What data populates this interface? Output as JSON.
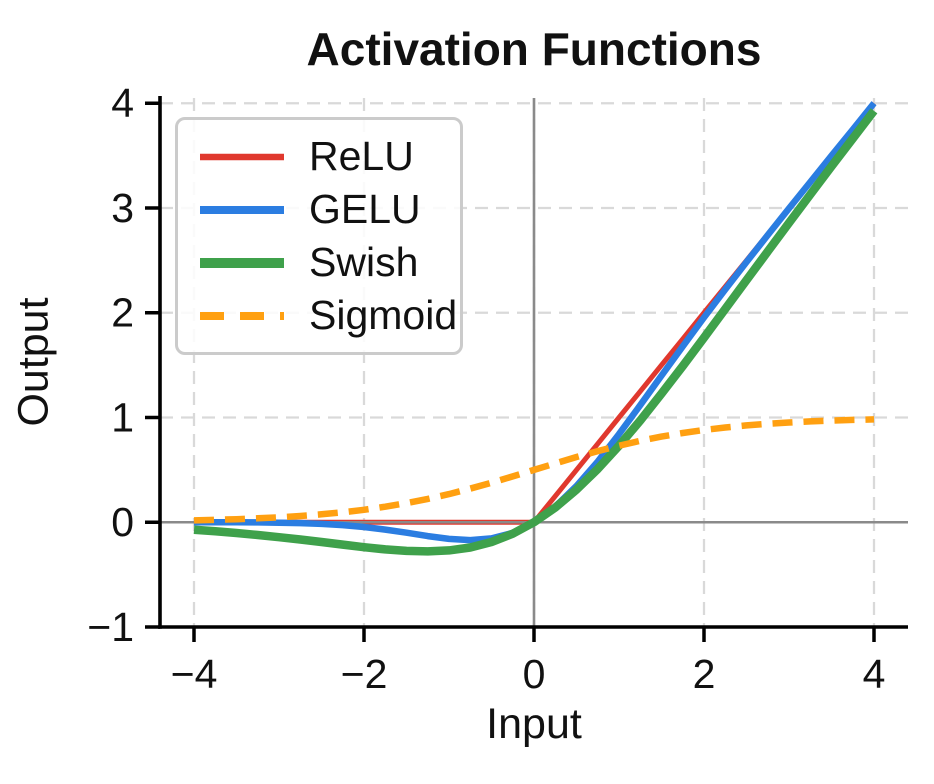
{
  "chart_data": {
    "type": "line",
    "title": "Activation Functions",
    "xlabel": "Input",
    "ylabel": "Output",
    "xlim": [
      -4.4,
      4.4
    ],
    "ylim": [
      -1,
      4.05
    ],
    "x_tick_values": [
      -4,
      -2,
      0,
      2,
      4
    ],
    "x_tick_labels": [
      "−4",
      "−2",
      "0",
      "2",
      "4"
    ],
    "y_tick_values": [
      -1,
      0,
      1,
      2,
      3,
      4
    ],
    "y_tick_labels": [
      "−1",
      "0",
      "1",
      "2",
      "3",
      "4"
    ],
    "grid": {
      "on": true,
      "style": "dashed",
      "color": "#d9d9d9"
    },
    "zero_lines": {
      "x": 0,
      "y": 0,
      "color": "#8a8a8a"
    },
    "legend": {
      "position": "upper-left"
    },
    "x": [
      -4,
      -3.75,
      -3.5,
      -3.25,
      -3,
      -2.75,
      -2.5,
      -2.25,
      -2,
      -1.75,
      -1.5,
      -1.25,
      -1,
      -0.75,
      -0.5,
      -0.25,
      0,
      0.25,
      0.5,
      0.75,
      1,
      1.25,
      1.5,
      1.75,
      2,
      2.25,
      2.5,
      2.75,
      3,
      3.25,
      3.5,
      3.75,
      4
    ],
    "series": [
      {
        "name": "ReLU",
        "color": "#e0382e",
        "width": 5,
        "dash": null,
        "y": [
          0,
          0,
          0,
          0,
          0,
          0,
          0,
          0,
          0,
          0,
          0,
          0,
          0,
          0,
          0,
          0,
          0,
          0.25,
          0.5,
          0.75,
          1,
          1.25,
          1.5,
          1.75,
          2,
          2.25,
          2.5,
          2.75,
          3,
          3.25,
          3.5,
          3.75,
          4
        ]
      },
      {
        "name": "GELU",
        "color": "#2b7de1",
        "width": 6.5,
        "dash": null,
        "y": [
          -0.0001,
          -0.0003,
          -0.0008,
          -0.0019,
          -0.004,
          -0.0082,
          -0.0155,
          -0.0275,
          -0.0455,
          -0.0702,
          -0.1002,
          -0.132,
          -0.1587,
          -0.17,
          -0.1543,
          -0.1003,
          0,
          0.1497,
          0.3457,
          0.5797,
          0.8413,
          1.118,
          1.3998,
          1.6798,
          1.9545,
          2.2225,
          2.4845,
          2.7418,
          2.996,
          3.2481,
          3.4992,
          3.7497,
          4.0
        ]
      },
      {
        "name": "Swish",
        "color": "#3fa14b",
        "width": 8.5,
        "dash": null,
        "y": [
          -0.0719,
          -0.0863,
          -0.1029,
          -0.1215,
          -0.1423,
          -0.1648,
          -0.1888,
          -0.2136,
          -0.2384,
          -0.2595,
          -0.2736,
          -0.2784,
          -0.2689,
          -0.2406,
          -0.1888,
          -0.1095,
          0,
          0.1405,
          0.3112,
          0.5089,
          0.7311,
          0.9714,
          1.2282,
          1.4914,
          1.7616,
          2.0364,
          2.3112,
          2.5852,
          2.8577,
          3.1285,
          3.3979,
          3.6636,
          3.928
        ]
      },
      {
        "name": "Sigmoid",
        "color": "#ffa011",
        "width": 6.5,
        "dash": "20 11",
        "y": [
          0.018,
          0.0229,
          0.0293,
          0.0374,
          0.0474,
          0.0601,
          0.0759,
          0.0953,
          0.1192,
          0.148,
          0.1824,
          0.2227,
          0.2689,
          0.3208,
          0.3775,
          0.4378,
          0.5,
          0.5622,
          0.6225,
          0.6792,
          0.7311,
          0.7773,
          0.8176,
          0.852,
          0.8808,
          0.9047,
          0.9241,
          0.9399,
          0.9526,
          0.9626,
          0.9707,
          0.9771,
          0.982
        ]
      }
    ]
  }
}
